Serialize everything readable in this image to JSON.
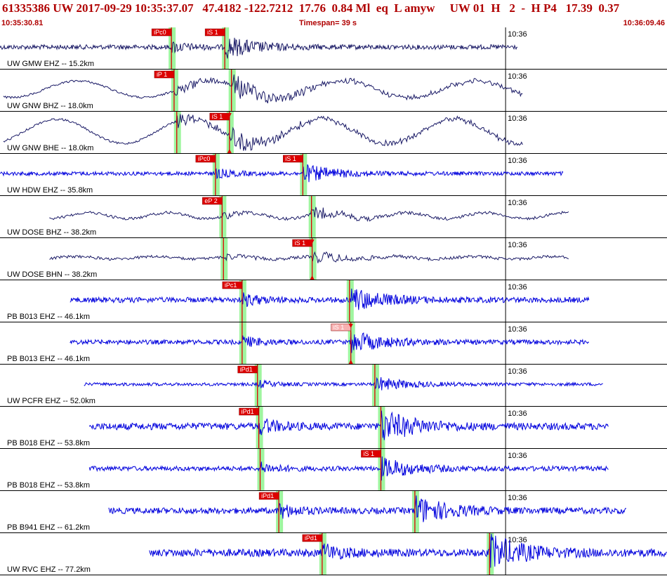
{
  "header": {
    "title": "61335386 UW 2017-09-29 10:35:37.07   47.4182 -122.7212  17.76  0.84 Ml  eq  L amyw     UW 01  H   2  -  H P4   17.39  0.37",
    "start_time": "10:35:30.81",
    "timespan": "Timespan=  39 s",
    "end_time": "10:36:09.46"
  },
  "colors": {
    "title": "#b00000",
    "trace_blue": "#0000dd",
    "trace_navy": "#1a1a66",
    "pick_red": "#dd0000",
    "pick_window_green": "#9ff59f",
    "tick_line": "#000000"
  },
  "channels": [
    {
      "label": "UW GMW EHZ -- 15.2km",
      "color": "navy",
      "start": 0.0,
      "end": 0.776,
      "amp": 0.06,
      "freq": "high",
      "phases": [
        {
          "type": "P",
          "label": "iPc0",
          "t": 0.257,
          "badge": "dark"
        },
        {
          "type": "S",
          "label": "iS 1",
          "t": 0.337,
          "badge": "dark"
        }
      ],
      "tick_label": "10:36",
      "tick_t": 0.758
    },
    {
      "label": "UW GNW BHZ -- 18.0km",
      "color": "navy",
      "start": 0.005,
      "end": 0.784,
      "amp": 0.22,
      "freq": "low",
      "phases": [
        {
          "type": "P",
          "label": "iP 1",
          "t": 0.261,
          "badge": "dark"
        },
        {
          "type": "S",
          "label": "",
          "t": 0.347,
          "badge": "none"
        }
      ],
      "tick_label": "10:36",
      "tick_t": 0.758
    },
    {
      "label": "UW GNW BHE -- 18.0km",
      "color": "navy",
      "start": 0.005,
      "end": 0.784,
      "amp": 0.32,
      "freq": "low",
      "phases": [
        {
          "type": "P",
          "label": "",
          "t": 0.265,
          "badge": "none"
        },
        {
          "type": "S",
          "label": "iS 1",
          "t": 0.344,
          "badge": "dark",
          "triangle": true
        }
      ],
      "tick_label": "10:36",
      "tick_t": 0.758
    },
    {
      "label": "UW HDW EHZ -- 35.8km",
      "color": "blue",
      "start": 0.0,
      "end": 0.845,
      "amp": 0.05,
      "freq": "high",
      "phases": [
        {
          "type": "P",
          "label": "iPc0",
          "t": 0.323,
          "badge": "dark"
        },
        {
          "type": "S",
          "label": "iS 1",
          "t": 0.454,
          "badge": "dark"
        }
      ],
      "tick_label": "10:36",
      "tick_t": 0.758
    },
    {
      "label": "UW DOSE BHZ -- 38.2km",
      "color": "navy",
      "start": 0.074,
      "end": 0.853,
      "amp": 0.12,
      "freq": "mid",
      "phases": [
        {
          "type": "P",
          "label": "eP 2",
          "t": 0.333,
          "badge": "dark"
        },
        {
          "type": "S",
          "label": "",
          "t": 0.467,
          "badge": "none"
        }
      ],
      "tick_label": "10:36",
      "tick_t": 0.758
    },
    {
      "label": "UW DOSE BHN -- 38.2km",
      "color": "navy",
      "start": 0.074,
      "end": 0.853,
      "amp": 0.05,
      "freq": "mid",
      "phases": [
        {
          "type": "P",
          "label": "",
          "t": 0.335,
          "badge": "none"
        },
        {
          "type": "S",
          "label": "iS 1",
          "t": 0.468,
          "badge": "dark",
          "triangle": true
        }
      ],
      "tick_label": "10:36",
      "tick_t": 0.758
    },
    {
      "label": "PB B013 EHZ -- 46.1km",
      "color": "blue",
      "start": 0.105,
      "end": 0.883,
      "amp": 0.07,
      "freq": "high",
      "phases": [
        {
          "type": "P",
          "label": "iPc1",
          "t": 0.363,
          "badge": "dark"
        },
        {
          "type": "S",
          "label": "",
          "t": 0.524,
          "badge": "none"
        }
      ],
      "tick_label": "10:36",
      "tick_t": 0.758
    },
    {
      "label": "PB B013 EHZ -- 46.1km",
      "color": "blue",
      "start": 0.105,
      "end": 0.883,
      "amp": 0.06,
      "freq": "high",
      "phases": [
        {
          "type": "P",
          "label": "",
          "t": 0.363,
          "badge": "none"
        },
        {
          "type": "S",
          "label": "iS 1",
          "t": 0.526,
          "badge": "light",
          "triangle": true
        }
      ],
      "tick_label": "10:36",
      "tick_t": 0.758
    },
    {
      "label": "UW PCFR EHZ -- 52.0km",
      "color": "blue",
      "start": 0.126,
      "end": 0.904,
      "amp": 0.04,
      "freq": "high",
      "phases": [
        {
          "type": "P",
          "label": "iPd1",
          "t": 0.386,
          "badge": "dark"
        },
        {
          "type": "S",
          "label": "",
          "t": 0.562,
          "badge": "none"
        }
      ],
      "tick_label": "10:36",
      "tick_t": 0.758
    },
    {
      "label": "PB B018 EHZ -- 53.8km",
      "color": "blue",
      "start": 0.134,
      "end": 0.912,
      "amp": 0.09,
      "freq": "high",
      "phases": [
        {
          "type": "P",
          "label": "iPd1",
          "t": 0.388,
          "badge": "dark"
        },
        {
          "type": "S",
          "label": "",
          "t": 0.571,
          "badge": "none"
        }
      ],
      "tick_label": "10:36",
      "tick_t": 0.758
    },
    {
      "label": "PB B018 EHZ -- 53.8km",
      "color": "blue",
      "start": 0.134,
      "end": 0.912,
      "amp": 0.06,
      "freq": "high",
      "phases": [
        {
          "type": "P",
          "label": "",
          "t": 0.39,
          "badge": "none"
        },
        {
          "type": "S",
          "label": "iS 1",
          "t": 0.571,
          "badge": "dark"
        }
      ],
      "tick_label": "10:36",
      "tick_t": 0.758
    },
    {
      "label": "PB B941 EHZ -- 61.2km",
      "color": "blue",
      "start": 0.163,
      "end": 0.939,
      "amp": 0.08,
      "freq": "high",
      "phases": [
        {
          "type": "P",
          "label": "iPd1",
          "t": 0.418,
          "badge": "dark"
        },
        {
          "type": "S",
          "label": "",
          "t": 0.622,
          "badge": "none"
        }
      ],
      "tick_label": "10:36",
      "tick_t": 0.758
    },
    {
      "label": "UW RVC EHZ -- 77.2km",
      "color": "blue",
      "start": 0.224,
      "end": 1.0,
      "amp": 0.1,
      "freq": "high",
      "phases": [
        {
          "type": "P",
          "label": "iPd1",
          "t": 0.483,
          "badge": "dark"
        },
        {
          "type": "S",
          "label": "",
          "t": 0.734,
          "badge": "none"
        }
      ],
      "tick_label": "10:36",
      "tick_t": 0.758
    }
  ]
}
